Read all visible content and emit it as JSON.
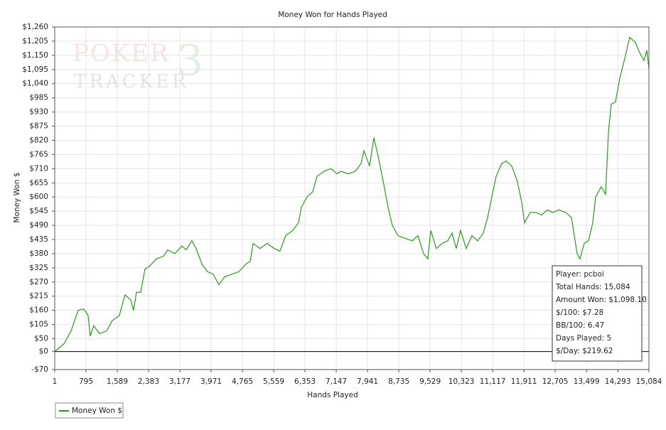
{
  "chart_data": {
    "type": "line",
    "title": "Money Won for Hands Played",
    "x_label": "Hands Played",
    "y_label": "Money Won $",
    "watermark": [
      "POKER",
      "TRACKER",
      "3"
    ],
    "series": [
      {
        "name": "Money Won $",
        "color": "#2a9a1e",
        "x": [
          1,
          235,
          415,
          595,
          740,
          848,
          902,
          992,
          1136,
          1316,
          1461,
          1641,
          1786,
          1930,
          2003,
          2075,
          2183,
          2291,
          2399,
          2580,
          2760,
          2869,
          3049,
          3229,
          3338,
          3482,
          3590,
          3735,
          3879,
          4024,
          4168,
          4312,
          4492,
          4673,
          4853,
          4962,
          5034,
          5214,
          5394,
          5574,
          5718,
          5863,
          6043,
          6187,
          6261,
          6405,
          6549,
          6657,
          6838,
          7018,
          7163,
          7271,
          7451,
          7632,
          7776,
          7848,
          7992,
          8101,
          8209,
          8353,
          8462,
          8570,
          8714,
          8895,
          9075,
          9219,
          9364,
          9472,
          9544,
          9689,
          9833,
          9977,
          10085,
          10194,
          10302,
          10446,
          10591,
          10735,
          10879,
          10988,
          11096,
          11204,
          11348,
          11457,
          11601,
          11745,
          11854,
          11926,
          12070,
          12214,
          12359,
          12503,
          12647,
          12792,
          12972,
          13117,
          13261,
          13333,
          13441,
          13550,
          13658,
          13730,
          13874,
          13983,
          14055,
          14127,
          14235,
          14343,
          14488,
          14596,
          14740,
          14849,
          14957,
          15029,
          15084
        ],
        "values": [
          0,
          30,
          80,
          160,
          165,
          140,
          60,
          100,
          70,
          80,
          120,
          140,
          220,
          200,
          160,
          230,
          230,
          320,
          330,
          360,
          370,
          395,
          380,
          410,
          395,
          430,
          400,
          340,
          310,
          300,
          260,
          290,
          300,
          310,
          340,
          350,
          420,
          400,
          420,
          400,
          390,
          450,
          470,
          500,
          560,
          600,
          620,
          680,
          700,
          710,
          690,
          700,
          690,
          700,
          730,
          780,
          720,
          830,
          760,
          650,
          560,
          490,
          450,
          440,
          430,
          450,
          380,
          360,
          470,
          400,
          420,
          430,
          460,
          400,
          470,
          400,
          450,
          430,
          460,
          520,
          600,
          680,
          730,
          740,
          720,
          660,
          580,
          500,
          540,
          540,
          530,
          550,
          540,
          550,
          540,
          520,
          380,
          360,
          420,
          430,
          500,
          600,
          640,
          610,
          850,
          960,
          970,
          1060,
          1150,
          1220,
          1200,
          1160,
          1130,
          1170,
          1098.1
        ]
      }
    ],
    "xlim": [
      1,
      15084
    ],
    "ylim": [
      -70,
      1260
    ],
    "xticks": [
      1,
      795,
      {
        "value": 1589,
        "label": "1,589"
      },
      {
        "value": 2383,
        "label": "2,383"
      },
      {
        "value": 3177,
        "label": "3,177"
      },
      {
        "value": 3971,
        "label": "3,971"
      },
      {
        "value": 4765,
        "label": "4,765"
      },
      {
        "value": 5559,
        "label": "5,559"
      },
      {
        "value": 6353,
        "label": "6,353"
      },
      {
        "value": 7147,
        "label": "7,147"
      },
      {
        "value": 7941,
        "label": "7,941"
      },
      {
        "value": 8735,
        "label": "8,735"
      },
      {
        "value": 9529,
        "label": "9,529"
      },
      {
        "value": 10323,
        "label": "10,323"
      },
      {
        "value": 11117,
        "label": "11,117"
      },
      {
        "value": 11911,
        "label": "11,911"
      },
      {
        "value": 12705,
        "label": "12,705"
      },
      {
        "value": 13499,
        "label": "13,499"
      },
      {
        "value": 14293,
        "label": "14,293"
      },
      {
        "value": 15084,
        "label": "15,084"
      }
    ],
    "yticks": [
      {
        "value": -70,
        "label": "-$70"
      },
      {
        "value": 0,
        "label": "$0"
      },
      {
        "value": 50,
        "label": "$50"
      },
      {
        "value": 105,
        "label": "$105"
      },
      {
        "value": 160,
        "label": "$160"
      },
      {
        "value": 215,
        "label": "$215"
      },
      {
        "value": 270,
        "label": "$270"
      },
      {
        "value": 325,
        "label": "$325"
      },
      {
        "value": 380,
        "label": "$380"
      },
      {
        "value": 435,
        "label": "$435"
      },
      {
        "value": 490,
        "label": "$490"
      },
      {
        "value": 545,
        "label": "$545"
      },
      {
        "value": 600,
        "label": "$600"
      },
      {
        "value": 655,
        "label": "$655"
      },
      {
        "value": 710,
        "label": "$710"
      },
      {
        "value": 765,
        "label": "$765"
      },
      {
        "value": 820,
        "label": "$820"
      },
      {
        "value": 875,
        "label": "$875"
      },
      {
        "value": 930,
        "label": "$930"
      },
      {
        "value": 985,
        "label": "$985"
      },
      {
        "value": 1040,
        "label": "$1,040"
      },
      {
        "value": 1095,
        "label": "$1,095"
      },
      {
        "value": 1150,
        "label": "$1,150"
      },
      {
        "value": 1205,
        "label": "$1,205"
      },
      {
        "value": 1260,
        "label": "$1,260"
      }
    ],
    "grid": true,
    "stats": [
      "Player: pcboi",
      "Total Hands: 15,084",
      "Amount Won: $1,098.10",
      "$/100: $7.28",
      "BB/100: 6.47",
      "Days Played: 5",
      "$/Day: $219.62"
    ]
  }
}
